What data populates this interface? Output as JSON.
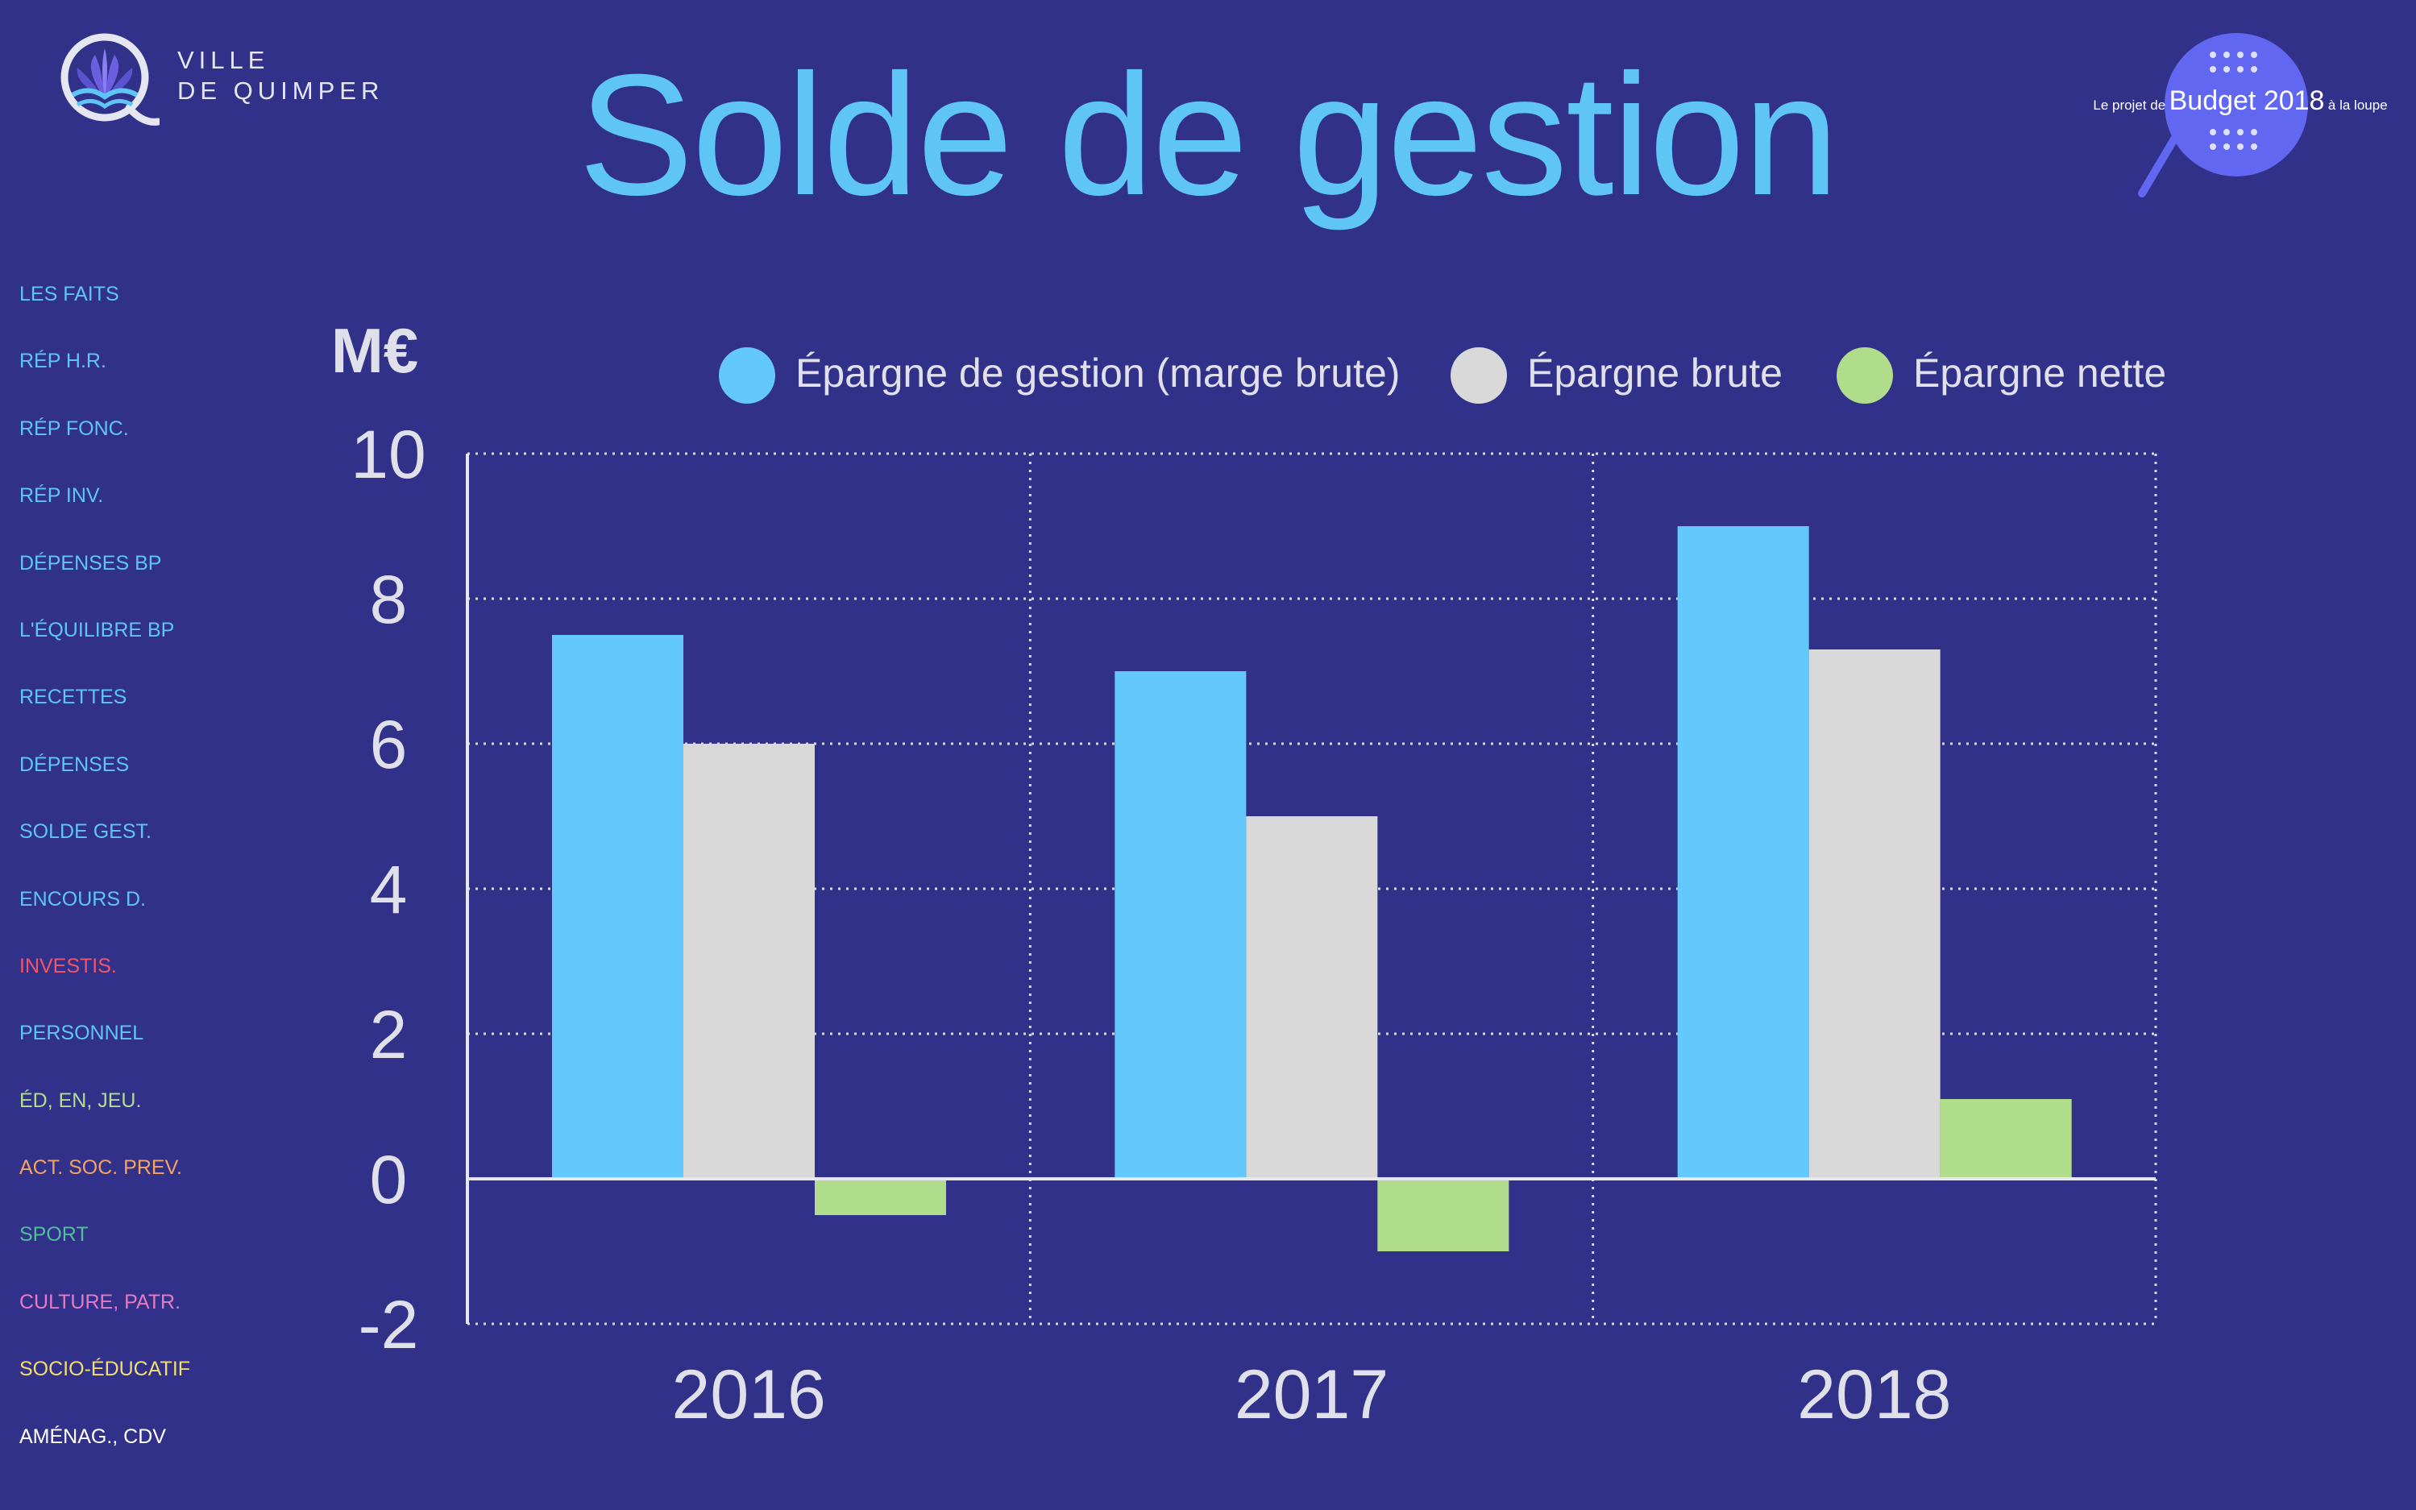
{
  "logo": {
    "line1": "VILLE",
    "line2": "DE QUIMPER"
  },
  "badge": {
    "prefix": "Le projet de",
    "main": "Budget 2018",
    "suffix": "à la loupe"
  },
  "colors": {
    "background": "#313189",
    "title": "#5ec5f6",
    "badge": "#6167f0"
  },
  "sidebar": {
    "items": [
      {
        "label": "LES FAITS",
        "color": "#5ec5f6"
      },
      {
        "label": "RÉP H.R.",
        "color": "#5ec5f6"
      },
      {
        "label": "RÉP FONC.",
        "color": "#5ec5f6"
      },
      {
        "label": "RÉP INV.",
        "color": "#5ec5f6"
      },
      {
        "label": "DÉPENSES BP",
        "color": "#5ec5f6"
      },
      {
        "label": "L'ÉQUILIBRE BP",
        "color": "#5ec5f6"
      },
      {
        "label": "RECETTES",
        "color": "#5ec5f6"
      },
      {
        "label": "DÉPENSES",
        "color": "#5ec5f6"
      },
      {
        "label": "SOLDE GEST.",
        "color": "#5ec5f6"
      },
      {
        "label": "ENCOURS D.",
        "color": "#5ec5f6"
      },
      {
        "label": "INVESTIS.",
        "color": "#f0566a"
      },
      {
        "label": "PERSONNEL",
        "color": "#5ec5f6"
      },
      {
        "label": "ÉD, EN, JEU.",
        "color": "#b3de8f"
      },
      {
        "label": "ACT. SOC. PREV.",
        "color": "#f5a35f"
      },
      {
        "label": "SPORT",
        "color": "#4fbf9a"
      },
      {
        "label": "CULTURE, PATR.",
        "color": "#e879c4"
      },
      {
        "label": "SOCIO-ÉDUCATIF",
        "color": "#f2de6e"
      },
      {
        "label": "AMÉNAG., CDV",
        "color": "#ffffff"
      }
    ]
  },
  "chart_data": {
    "type": "bar",
    "title": "Solde de gestion",
    "ylabel": "M€",
    "categories": [
      "2016",
      "2017",
      "2018"
    ],
    "series": [
      {
        "name": "Épargne de gestion (marge brute)",
        "values": [
          7.5,
          7.0,
          9.0
        ],
        "color": "#63c8fb"
      },
      {
        "name": "Épargne brute",
        "values": [
          6.0,
          5.0,
          7.3
        ],
        "color": "#d9d9d9"
      },
      {
        "name": "Épargne nette",
        "values": [
          -0.5,
          -1.0,
          1.1
        ],
        "color": "#b0dd8c"
      }
    ],
    "ylim": [
      -2,
      10
    ],
    "yticks": [
      "10",
      "8",
      "6",
      "4",
      "2",
      "0",
      "-2"
    ],
    "grid": true,
    "legend": "top"
  }
}
